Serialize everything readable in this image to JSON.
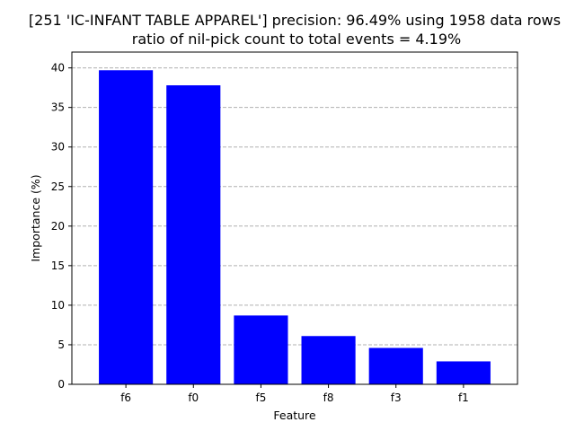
{
  "chart_data": {
    "type": "bar",
    "title": "[251 'IC-INFANT TABLE APPAREL'] precision: 96.49% using 1958 data rows",
    "subtitle": "ratio of nil-pick count to total events = 4.19%",
    "xlabel": "Feature",
    "ylabel": "Importance (%)",
    "categories": [
      "f6",
      "f0",
      "f5",
      "f8",
      "f3",
      "f1"
    ],
    "values": [
      39.7,
      37.8,
      8.7,
      6.1,
      4.6,
      2.9
    ],
    "ylim": [
      0,
      42
    ],
    "yticks": [
      0,
      5,
      10,
      15,
      20,
      25,
      30,
      35,
      40
    ],
    "grid": "y-dashed",
    "bar_color": "#0000ff"
  }
}
